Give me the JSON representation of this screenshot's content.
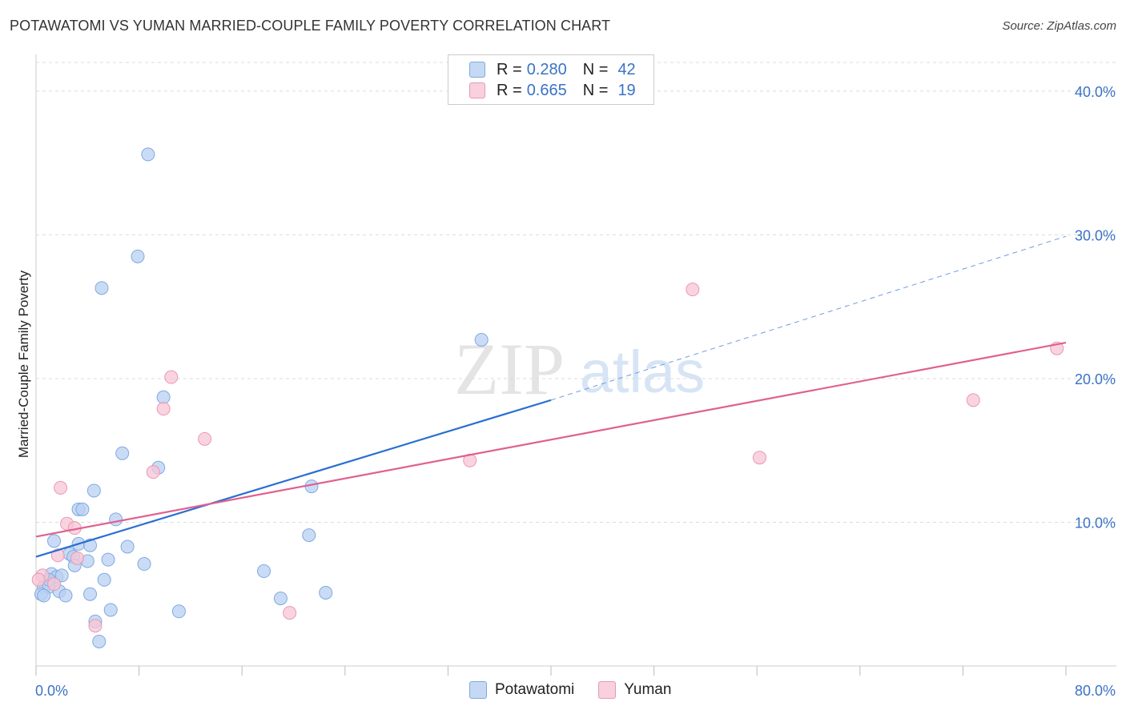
{
  "title": "POTAWATOMI VS YUMAN MARRIED-COUPLE FAMILY POVERTY CORRELATION CHART",
  "source": "Source: ZipAtlas.com",
  "watermark": {
    "zip": "ZIP",
    "atlas": "atlas"
  },
  "legend_stats": [
    {
      "r_label": "R =",
      "r_value": "0.280",
      "n_label": "N =",
      "n_value": "42"
    },
    {
      "r_label": "R =",
      "r_value": "0.665",
      "n_label": "N =",
      "n_value": "19"
    }
  ],
  "legend": [
    {
      "name": "Potawatomi"
    },
    {
      "name": "Yuman"
    }
  ],
  "chart_data": {
    "type": "scatter",
    "title": "POTAWATOMI VS YUMAN MARRIED-COUPLE FAMILY POVERTY CORRELATION CHART",
    "xlabel": "",
    "ylabel": "Married-Couple Family Poverty",
    "xlim": [
      0,
      80
    ],
    "ylim": [
      0,
      42
    ],
    "x_tick_labels": [
      "0.0%",
      "80.0%"
    ],
    "y_ticks": [
      10,
      20,
      30,
      40
    ],
    "y_tick_labels": [
      "10.0%",
      "20.0%",
      "30.0%",
      "40.0%"
    ],
    "grid": true,
    "series": [
      {
        "name": "Potawatomi",
        "color": "#7fa9e0",
        "fill": "#b8d0f2",
        "line_color": "#2a6fd1",
        "r": 0.28,
        "n": 42,
        "points": [
          [
            8.7,
            35.6
          ],
          [
            7.9,
            28.5
          ],
          [
            5.1,
            26.3
          ],
          [
            34.6,
            22.7
          ],
          [
            9.9,
            18.7
          ],
          [
            6.7,
            14.8
          ],
          [
            9.5,
            13.8
          ],
          [
            4.5,
            12.2
          ],
          [
            21.4,
            12.5
          ],
          [
            3.3,
            10.9
          ],
          [
            3.6,
            10.9
          ],
          [
            6.2,
            10.2
          ],
          [
            1.4,
            8.7
          ],
          [
            3.3,
            8.5
          ],
          [
            4.2,
            8.4
          ],
          [
            7.1,
            8.3
          ],
          [
            2.6,
            7.8
          ],
          [
            2.9,
            7.6
          ],
          [
            4.0,
            7.3
          ],
          [
            5.6,
            7.4
          ],
          [
            8.4,
            7.1
          ],
          [
            3.0,
            7.0
          ],
          [
            17.7,
            6.6
          ],
          [
            21.2,
            9.1
          ],
          [
            1.2,
            6.4
          ],
          [
            1.6,
            6.2
          ],
          [
            2.0,
            6.3
          ],
          [
            5.3,
            6.0
          ],
          [
            0.6,
            5.5
          ],
          [
            1.0,
            5.5
          ],
          [
            1.8,
            5.2
          ],
          [
            0.4,
            5.0
          ],
          [
            0.6,
            4.9
          ],
          [
            2.3,
            4.9
          ],
          [
            4.2,
            5.0
          ],
          [
            19.0,
            4.7
          ],
          [
            22.5,
            5.1
          ],
          [
            5.8,
            3.9
          ],
          [
            11.1,
            3.8
          ],
          [
            4.6,
            3.1
          ],
          [
            4.9,
            1.7
          ],
          [
            1.0,
            6.0
          ]
        ],
        "trend": {
          "x0": 0,
          "y0": 7.6,
          "x1": 40,
          "y1": 18.5,
          "dashed_to_x": 80,
          "dashed_to_y": 29.9
        }
      },
      {
        "name": "Yuman",
        "color": "#e998b0",
        "fill": "#f7c6d5",
        "line_color": "#e0608f",
        "r": 0.665,
        "n": 19,
        "points": [
          [
            51.0,
            26.2
          ],
          [
            79.3,
            22.1
          ],
          [
            72.8,
            18.5
          ],
          [
            10.5,
            20.1
          ],
          [
            9.9,
            17.9
          ],
          [
            13.1,
            15.8
          ],
          [
            33.7,
            14.3
          ],
          [
            56.2,
            14.5
          ],
          [
            9.1,
            13.5
          ],
          [
            1.9,
            12.4
          ],
          [
            2.4,
            9.9
          ],
          [
            3.0,
            9.6
          ],
          [
            1.7,
            7.7
          ],
          [
            3.2,
            7.5
          ],
          [
            0.5,
            6.3
          ],
          [
            0.2,
            6.0
          ],
          [
            19.7,
            3.7
          ],
          [
            4.6,
            2.8
          ],
          [
            1.4,
            5.7
          ]
        ],
        "trend": {
          "x0": 0,
          "y0": 9.0,
          "x1": 80,
          "y1": 22.5
        }
      }
    ]
  }
}
